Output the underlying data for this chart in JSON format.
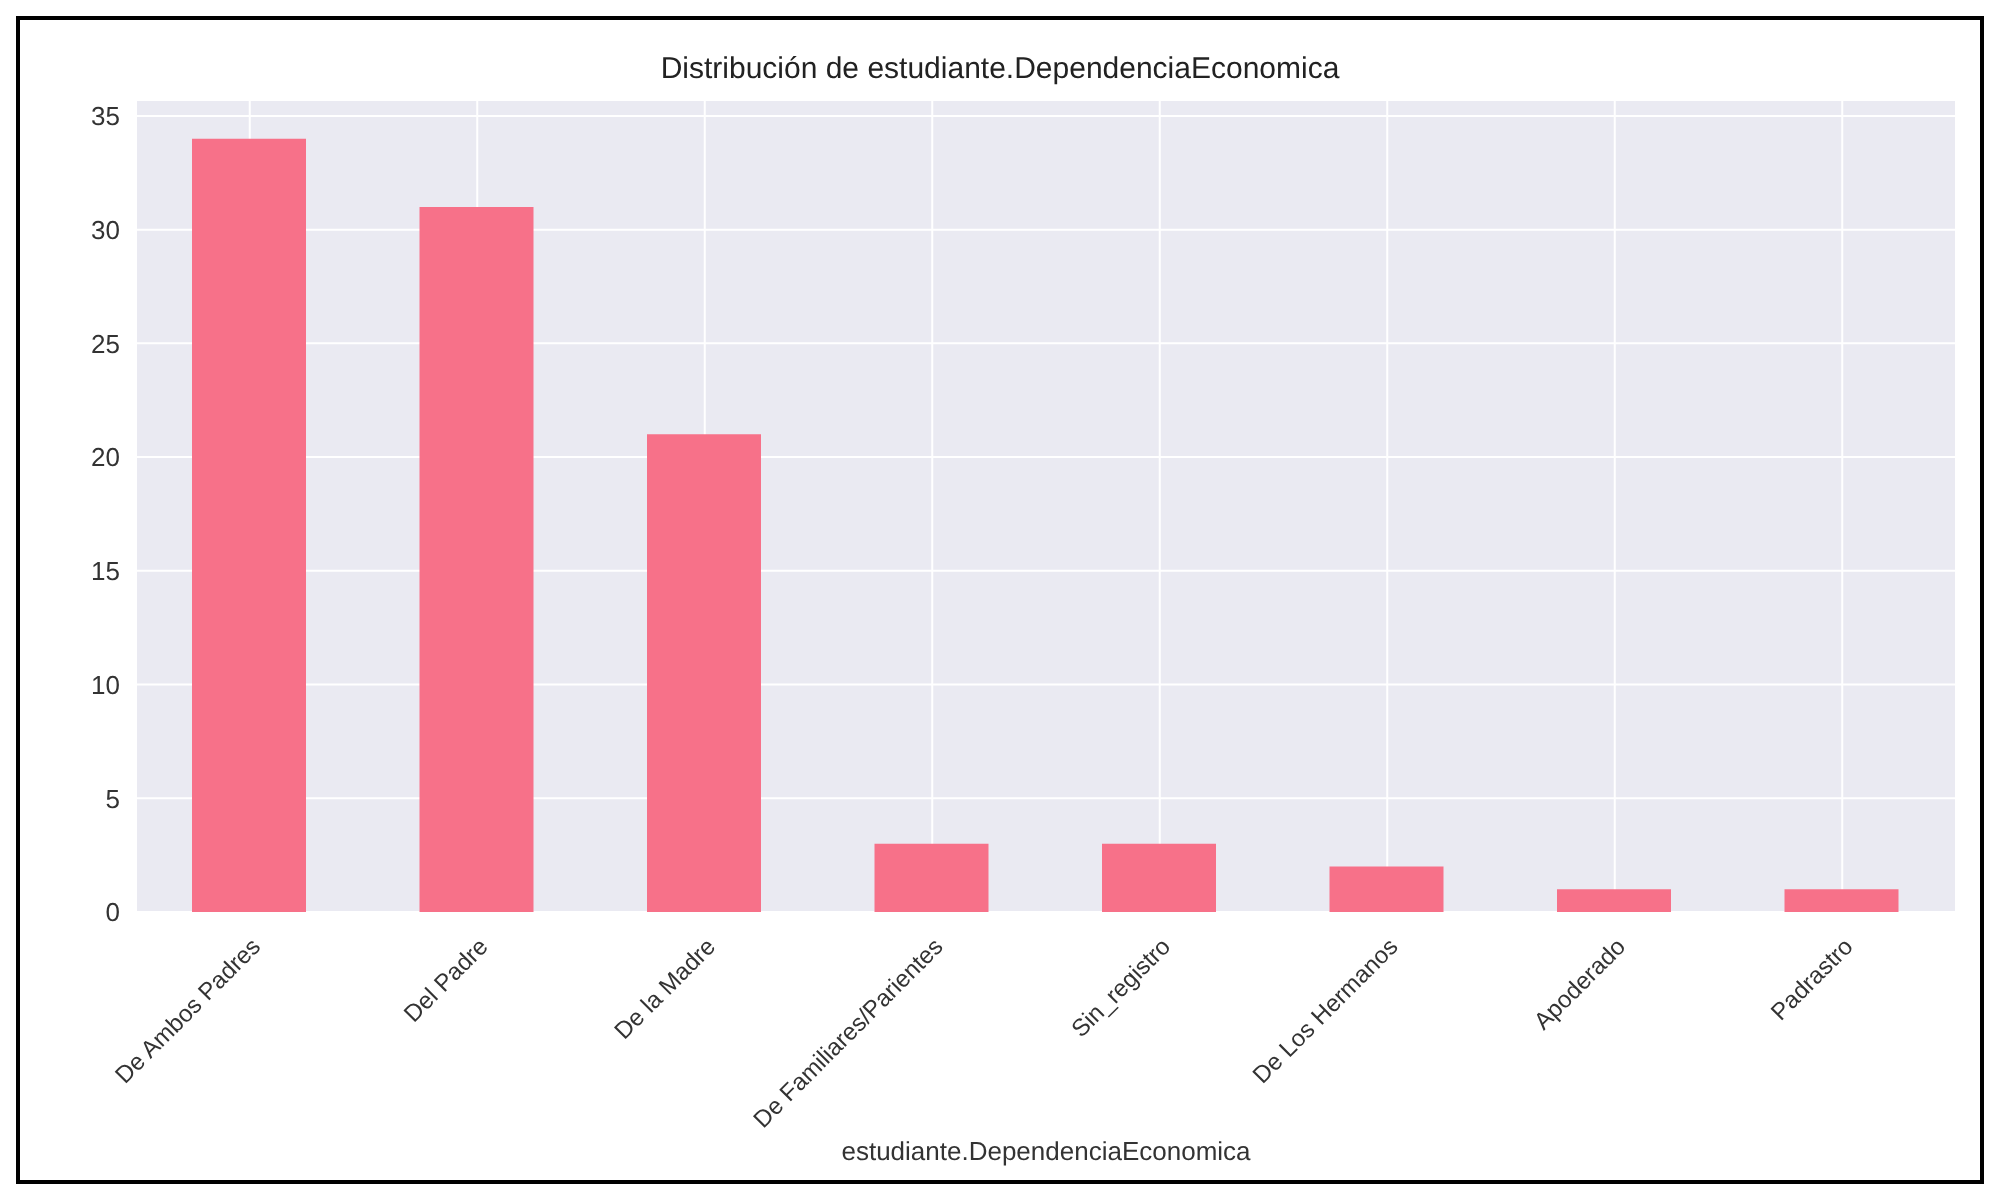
{
  "chart_data": {
    "type": "bar",
    "title": "Distribución de estudiante.DependenciaEconomica",
    "xlabel": "estudiante.DependenciaEconomica",
    "categories": [
      "De Ambos Padres",
      "Del Padre",
      "De la Madre",
      "De Familiares/Parientes",
      "Sin_registro",
      "De Los Hermanos",
      "Apoderado",
      "Padrastro"
    ],
    "values": [
      34,
      31,
      21,
      3,
      3,
      2,
      1,
      1
    ],
    "color": "#f77189",
    "ylim": [
      0,
      35.7
    ],
    "yticks": [
      0,
      5,
      10,
      15,
      20,
      25,
      30,
      35
    ],
    "grid": true
  }
}
